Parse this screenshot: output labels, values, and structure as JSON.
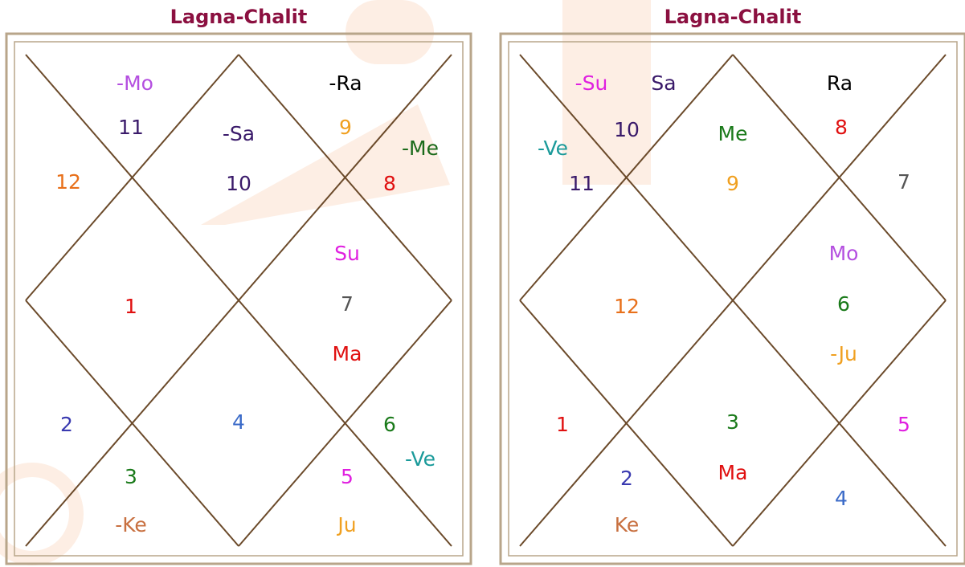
{
  "charts": [
    {
      "title": "Lagna-Chalit",
      "labels": [
        "-Mo",
        "11",
        "12",
        "-Sa",
        "10",
        "-Ra",
        "9",
        "-Me",
        "8",
        "Su",
        "7",
        "Ma",
        "1",
        "2",
        "4",
        "6",
        "-Ve",
        "3",
        "5",
        "-Ke",
        "Ju"
      ]
    },
    {
      "title": "Lagna-Chalit",
      "labels": [
        "-Su",
        "Sa",
        "Ra",
        "10",
        "Me",
        "8",
        "-Ve",
        "11",
        "9",
        "7",
        "Mo",
        "6",
        "12",
        "-Ju",
        "1",
        "3",
        "5",
        "Ma",
        "2",
        "4",
        "Ke"
      ]
    }
  ]
}
